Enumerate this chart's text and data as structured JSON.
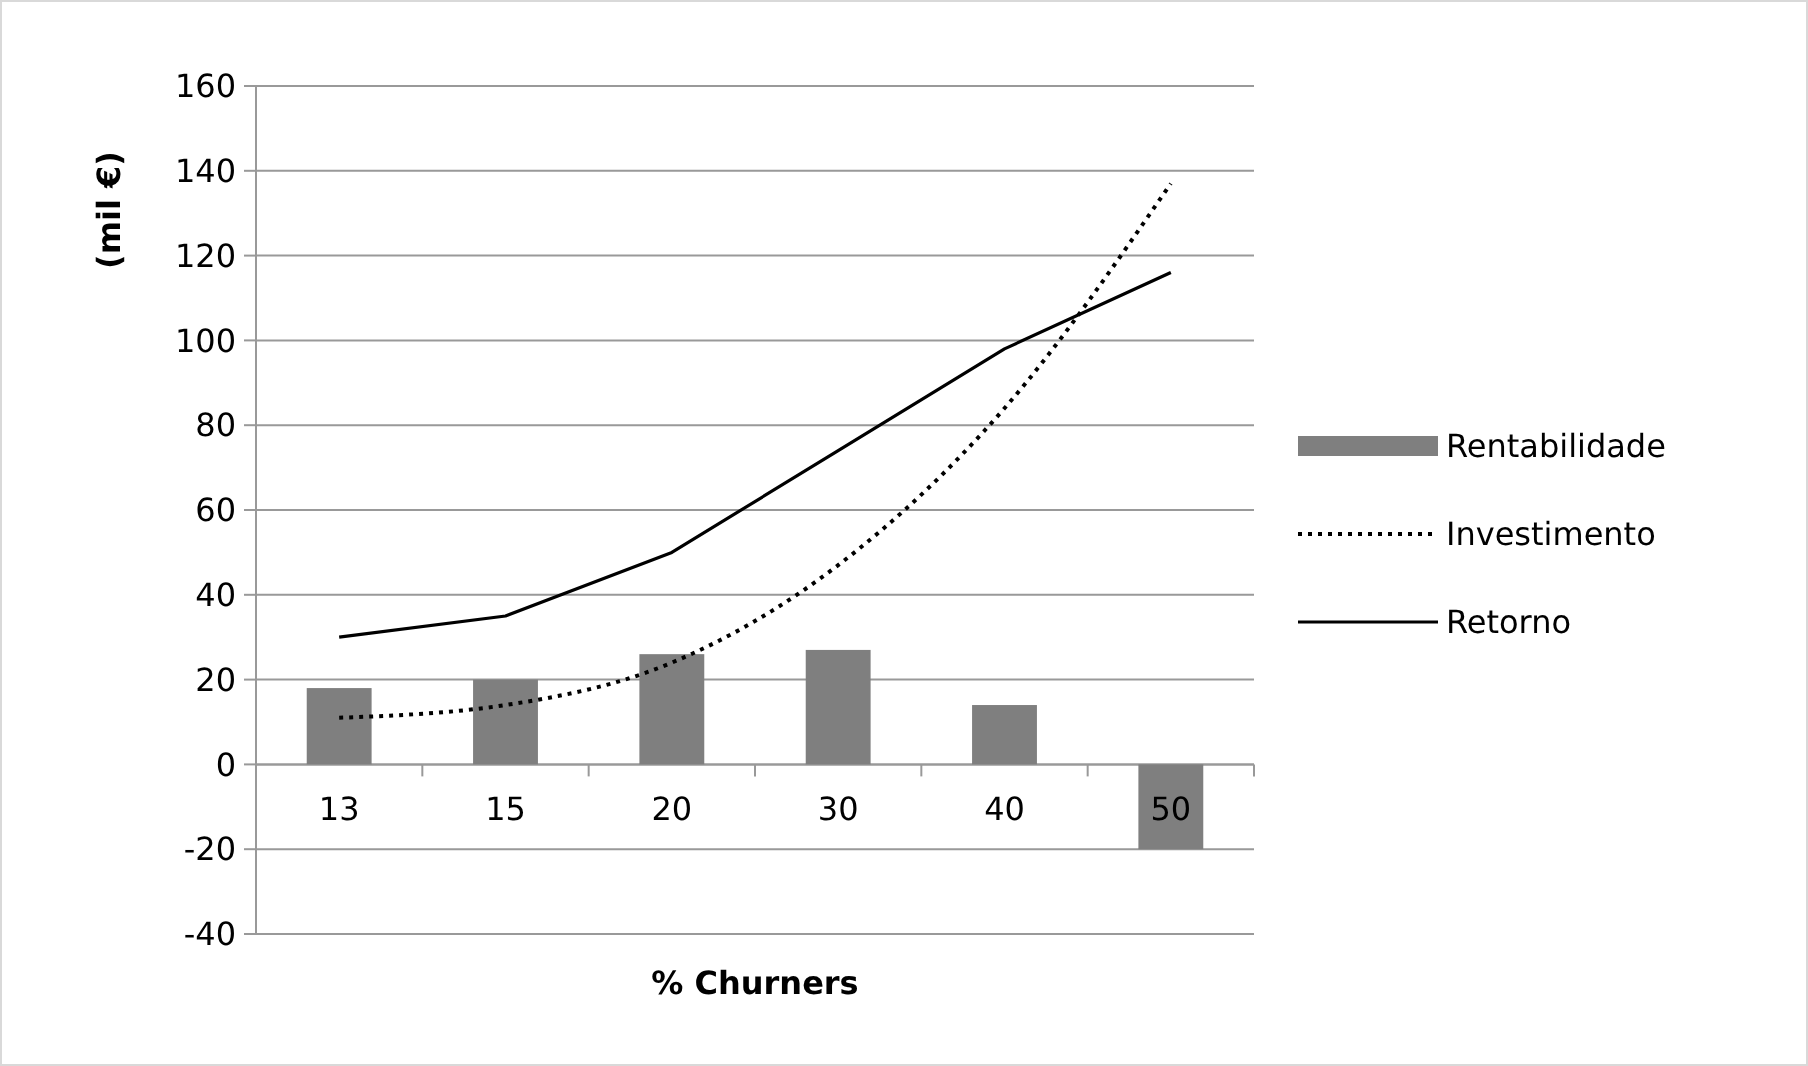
{
  "chart_data": {
    "type": "bar",
    "xlabel": "% Churners",
    "ylabel": "(mil €)",
    "categories": [
      "13",
      "15",
      "20",
      "30",
      "40",
      "50"
    ],
    "series": [
      {
        "name": "Rentabilidade",
        "color": "#7f7f7f",
        "values": [
          18,
          20,
          26,
          27,
          14,
          -20
        ]
      },
      {
        "name": "Investimento",
        "type": "line",
        "color": "#000000",
        "line_style": "dotted",
        "values": [
          11,
          14,
          24,
          47,
          84,
          137
        ]
      },
      {
        "name": "Retorno",
        "type": "line",
        "color": "#000000",
        "line_style": "solid",
        "values": [
          30,
          35,
          50,
          74,
          98,
          116
        ]
      }
    ],
    "ylim": [
      -40,
      160
    ],
    "yticks": [
      -40,
      -20,
      0,
      20,
      40,
      60,
      80,
      100,
      120,
      140,
      160
    ],
    "grid": "y",
    "legend": "right"
  }
}
